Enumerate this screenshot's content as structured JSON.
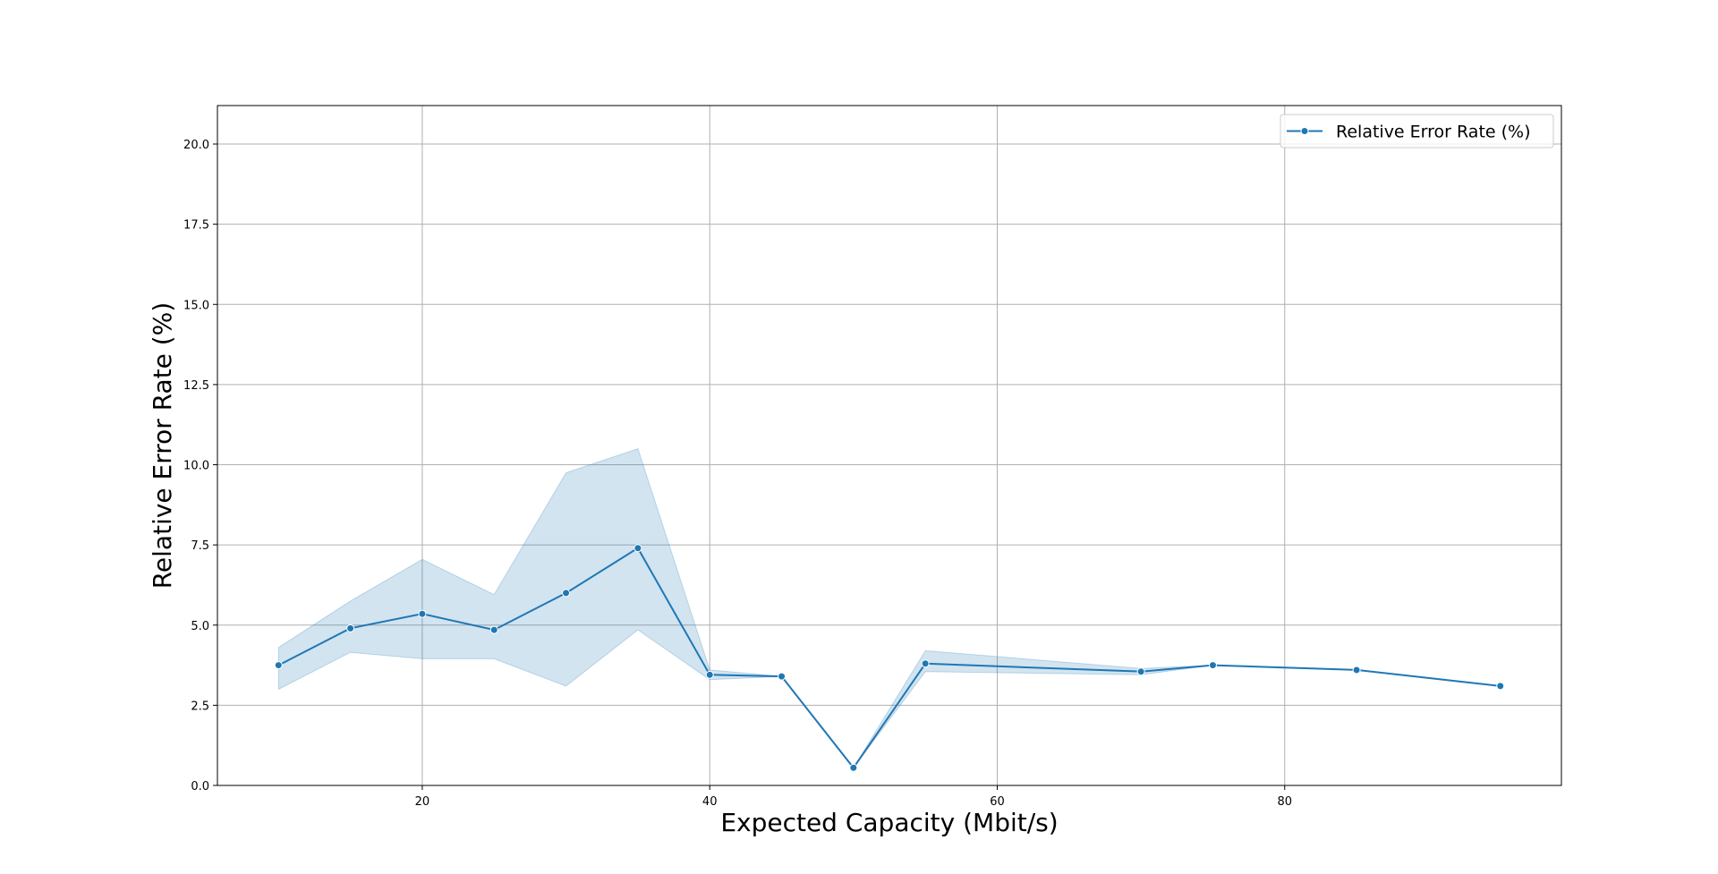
{
  "chart_data": {
    "type": "line",
    "title": "",
    "xlabel": "Expected Capacity (Mbit/s)",
    "ylabel": "Relative Error Rate (%)",
    "xlim": [
      5.75,
      99.25
    ],
    "ylim": [
      0,
      21.2
    ],
    "xticks": [
      20,
      40,
      60,
      80
    ],
    "yticks": [
      0.0,
      2.5,
      5.0,
      7.5,
      10.0,
      12.5,
      15.0,
      17.5,
      20.0
    ],
    "grid": true,
    "legend": {
      "position": "top-right"
    },
    "color": "#1f77b4",
    "band_color": "#1f77b4",
    "series": [
      {
        "name": "Relative Error Rate (%)",
        "x": [
          10,
          15,
          20,
          25,
          30,
          35,
          40,
          45,
          50,
          55,
          70,
          75,
          85,
          95
        ],
        "y": [
          3.75,
          4.9,
          5.35,
          4.85,
          6.0,
          7.4,
          3.45,
          3.4,
          0.55,
          3.8,
          3.55,
          3.75,
          3.6,
          3.1
        ],
        "lower": [
          3.0,
          4.15,
          3.95,
          3.95,
          3.1,
          4.85,
          3.3,
          3.4,
          0.55,
          3.55,
          3.45,
          3.75,
          3.6,
          3.1
        ],
        "upper": [
          4.3,
          5.75,
          7.05,
          5.95,
          9.75,
          10.5,
          3.6,
          3.4,
          0.55,
          4.2,
          3.65,
          3.75,
          3.6,
          3.1
        ]
      }
    ]
  }
}
